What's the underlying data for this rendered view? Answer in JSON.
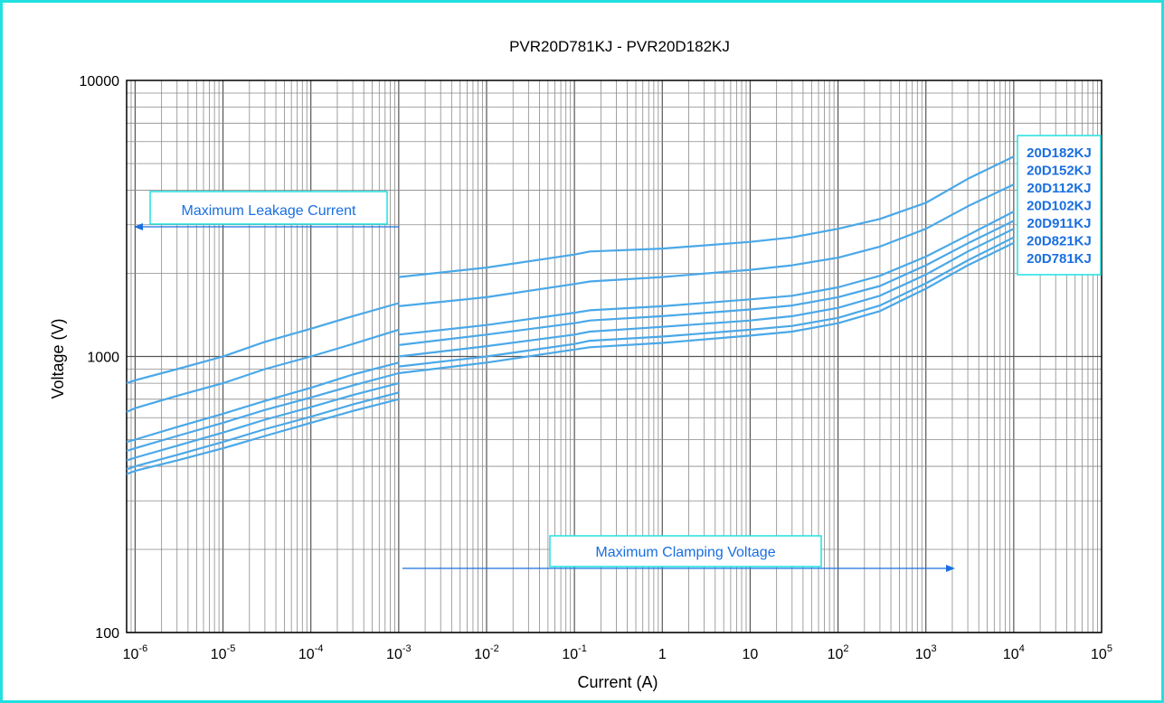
{
  "chart_data": {
    "type": "line",
    "title": "PVR20D781KJ - PVR20D182KJ",
    "xlabel": "Current (A)",
    "ylabel": "Voltage (V)",
    "x_scale": "log",
    "y_scale": "log",
    "xlim": [
      8e-07,
      100000
    ],
    "ylim": [
      100,
      10000
    ],
    "grid": true,
    "line_color": "#4aa8e8",
    "accent_color": "#1a6fe0",
    "box_border_color": "#21e0e0",
    "x_ticks": [
      {
        "base": "10",
        "exp": "-6"
      },
      {
        "base": "10",
        "exp": "-5"
      },
      {
        "base": "10",
        "exp": "-4"
      },
      {
        "base": "10",
        "exp": "-3"
      },
      {
        "base": "10",
        "exp": "-2"
      },
      {
        "base": "10",
        "exp": "-1"
      },
      {
        "base": "1",
        "exp": ""
      },
      {
        "base": "10",
        "exp": ""
      },
      {
        "base": "10",
        "exp": "2"
      },
      {
        "base": "10",
        "exp": "3"
      },
      {
        "base": "10",
        "exp": "4"
      },
      {
        "base": "10",
        "exp": "5"
      }
    ],
    "y_ticks": [
      "100",
      "1000",
      "10000"
    ],
    "annotations": {
      "leakage_label": "Maximum Leakage Current",
      "clamping_label": "Maximum Clamping Voltage"
    },
    "series": [
      {
        "name": "20D182KJ",
        "leakage": {
          "x": [
            8e-07,
            1e-06,
            3e-06,
            1e-05,
            3e-05,
            0.0001,
            0.0003,
            0.001
          ],
          "y": [
            800,
            820,
            900,
            1000,
            1130,
            1260,
            1400,
            1560
          ]
        },
        "clamp": {
          "x": [
            0.001,
            0.01,
            0.1,
            0.15,
            1,
            10,
            30,
            100,
            300,
            1000,
            3000,
            10000
          ],
          "y": [
            1940,
            2100,
            2340,
            2400,
            2460,
            2600,
            2700,
            2900,
            3150,
            3600,
            4400,
            5300
          ]
        }
      },
      {
        "name": "20D152KJ",
        "leakage": {
          "x": [
            8e-07,
            1e-06,
            3e-06,
            1e-05,
            3e-05,
            0.0001,
            0.0003,
            0.001
          ],
          "y": [
            630,
            650,
            720,
            800,
            900,
            1000,
            1110,
            1250
          ]
        },
        "clamp": {
          "x": [
            0.001,
            0.01,
            0.1,
            0.15,
            1,
            10,
            30,
            100,
            300,
            1000,
            3000,
            10000
          ],
          "y": [
            1520,
            1640,
            1830,
            1870,
            1940,
            2060,
            2140,
            2280,
            2500,
            2900,
            3500,
            4200
          ]
        }
      },
      {
        "name": "20D112KJ",
        "leakage": {
          "x": [
            8e-07,
            1e-06,
            3e-06,
            1e-05,
            3e-05,
            0.0001,
            0.0003,
            0.001
          ],
          "y": [
            490,
            500,
            555,
            620,
            690,
            770,
            860,
            950
          ]
        },
        "clamp": {
          "x": [
            0.001,
            0.01,
            0.1,
            0.15,
            1,
            10,
            30,
            100,
            300,
            1000,
            3000,
            10000
          ],
          "y": [
            1200,
            1300,
            1440,
            1470,
            1520,
            1610,
            1660,
            1780,
            1960,
            2300,
            2750,
            3350
          ]
        }
      },
      {
        "name": "20D102KJ",
        "leakage": {
          "x": [
            8e-07,
            1e-06,
            3e-06,
            1e-05,
            3e-05,
            0.0001,
            0.0003,
            0.001
          ],
          "y": [
            455,
            465,
            515,
            575,
            640,
            710,
            785,
            870
          ]
        },
        "clamp": {
          "x": [
            0.001,
            0.01,
            0.1,
            0.15,
            1,
            10,
            30,
            100,
            300,
            1000,
            3000,
            10000
          ],
          "y": [
            1100,
            1200,
            1320,
            1350,
            1400,
            1480,
            1530,
            1640,
            1800,
            2140,
            2570,
            3100
          ]
        }
      },
      {
        "name": "20D911KJ",
        "leakage": {
          "x": [
            8e-07,
            1e-06,
            3e-06,
            1e-05,
            3e-05,
            0.0001,
            0.0003,
            0.001
          ],
          "y": [
            420,
            430,
            475,
            530,
            590,
            655,
            725,
            800
          ]
        },
        "clamp": {
          "x": [
            0.001,
            0.01,
            0.1,
            0.15,
            1,
            10,
            30,
            100,
            300,
            1000,
            3000,
            10000
          ],
          "y": [
            1000,
            1090,
            1200,
            1230,
            1280,
            1350,
            1400,
            1500,
            1660,
            1980,
            2400,
            2900
          ]
        }
      },
      {
        "name": "20D821KJ",
        "leakage": {
          "x": [
            8e-07,
            1e-06,
            3e-06,
            1e-05,
            3e-05,
            0.0001,
            0.0003,
            0.001
          ],
          "y": [
            390,
            400,
            440,
            490,
            545,
            605,
            670,
            740
          ]
        },
        "clamp": {
          "x": [
            0.001,
            0.01,
            0.1,
            0.15,
            1,
            10,
            30,
            100,
            300,
            1000,
            3000,
            10000
          ],
          "y": [
            920,
            1000,
            1110,
            1140,
            1180,
            1250,
            1290,
            1380,
            1530,
            1840,
            2230,
            2700
          ]
        }
      },
      {
        "name": "20D781KJ",
        "leakage": {
          "x": [
            8e-07,
            1e-06,
            3e-06,
            1e-05,
            3e-05,
            0.0001,
            0.0003,
            0.001
          ],
          "y": [
            375,
            385,
            420,
            465,
            515,
            575,
            635,
            700
          ]
        },
        "clamp": {
          "x": [
            0.001,
            0.01,
            0.1,
            0.15,
            1,
            10,
            30,
            100,
            300,
            1000,
            3000,
            10000
          ],
          "y": [
            870,
            950,
            1060,
            1080,
            1120,
            1190,
            1230,
            1320,
            1460,
            1760,
            2140,
            2580
          ]
        }
      }
    ]
  }
}
